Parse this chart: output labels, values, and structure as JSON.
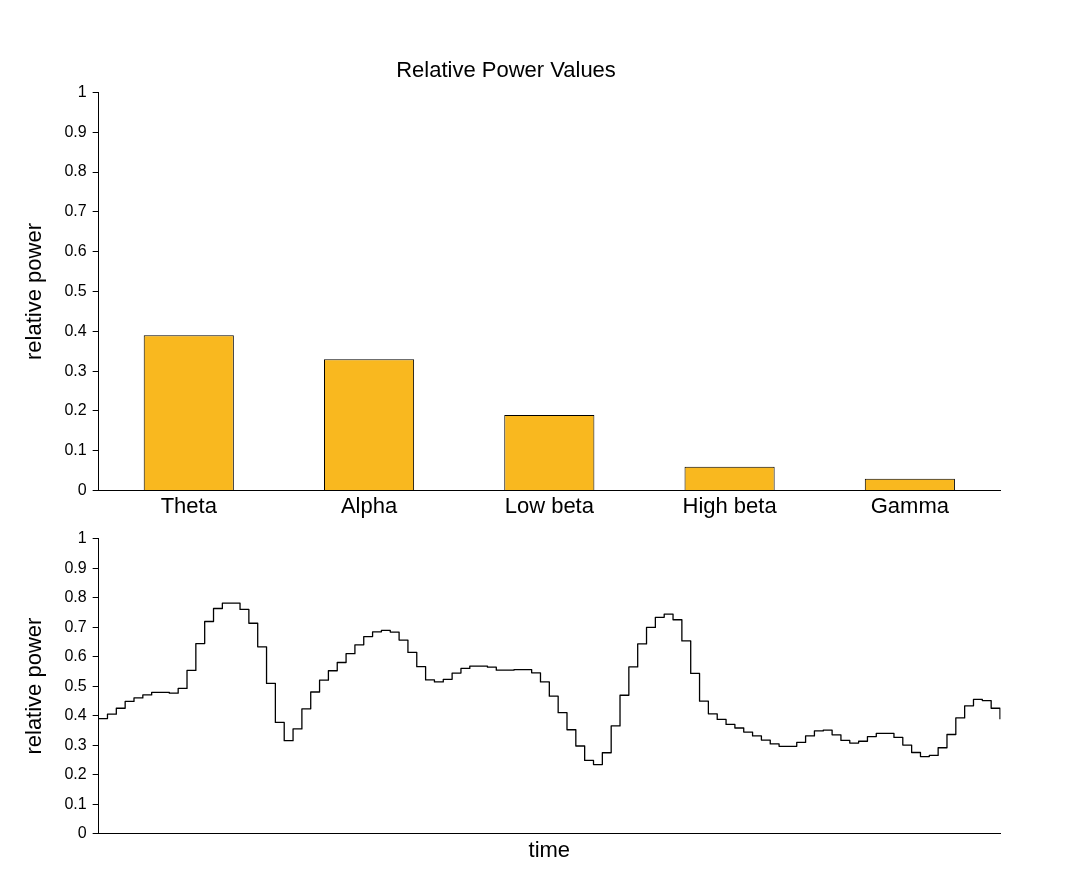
{
  "chart_data": [
    {
      "type": "bar",
      "title": "Relative Power Values",
      "ylabel": "relative power",
      "categories": [
        "Theta",
        "Alpha",
        "Low beta",
        "High beta",
        "Gamma"
      ],
      "values": [
        0.39,
        0.33,
        0.19,
        0.06,
        0.03
      ],
      "color": "#f9b81f",
      "ylim": [
        0,
        1
      ],
      "yticks": [
        0,
        0.1,
        0.2,
        0.3,
        0.4,
        0.5,
        0.6,
        0.7,
        0.8,
        0.9,
        1
      ],
      "grid": false,
      "legend": false
    },
    {
      "type": "step",
      "xlabel": "time",
      "ylabel": "relative power",
      "categories": [
        null,
        null,
        null,
        null,
        null,
        null,
        null,
        null,
        null,
        null,
        null,
        null,
        null,
        null,
        null,
        null,
        null,
        null,
        null,
        null,
        null,
        null,
        null,
        null,
        null,
        null,
        null,
        null,
        null,
        null,
        null,
        null,
        null,
        null,
        null,
        null,
        null,
        null,
        null,
        null,
        null,
        null,
        null,
        null,
        null,
        null,
        null,
        null,
        null,
        null,
        null,
        null,
        null,
        null,
        null,
        null,
        null,
        null,
        null,
        null,
        null,
        null,
        null,
        null,
        null,
        null,
        null,
        null,
        null,
        null,
        null,
        null,
        null,
        null,
        null,
        null,
        null,
        null,
        null,
        null,
        null,
        null,
        null,
        null,
        null,
        null,
        null,
        null,
        null,
        null,
        null,
        null,
        null,
        null,
        null,
        null,
        null,
        null,
        null,
        null,
        null,
        null,
        null
      ],
      "values": [
        0.39,
        0.405,
        0.425,
        0.448,
        0.46,
        0.47,
        0.479,
        0.479,
        0.476,
        0.492,
        0.553,
        0.644,
        0.719,
        0.763,
        0.781,
        0.781,
        0.76,
        0.713,
        0.633,
        0.509,
        0.377,
        0.315,
        0.355,
        0.423,
        0.48,
        0.52,
        0.552,
        0.58,
        0.61,
        0.64,
        0.668,
        0.684,
        0.689,
        0.683,
        0.656,
        0.614,
        0.566,
        0.521,
        0.514,
        0.523,
        0.544,
        0.56,
        0.568,
        0.568,
        0.564,
        0.554,
        0.554,
        0.556,
        0.556,
        0.545,
        0.514,
        0.466,
        0.41,
        0.352,
        0.297,
        0.248,
        0.234,
        0.274,
        0.365,
        0.469,
        0.565,
        0.643,
        0.699,
        0.733,
        0.744,
        0.725,
        0.653,
        0.543,
        0.449,
        0.406,
        0.387,
        0.37,
        0.358,
        0.344,
        0.331,
        0.317,
        0.304,
        0.296,
        0.296,
        0.309,
        0.331,
        0.348,
        0.351,
        0.335,
        0.316,
        0.307,
        0.313,
        0.329,
        0.34,
        0.34,
        0.326,
        0.3,
        0.275,
        0.261,
        0.265,
        0.291,
        0.336,
        0.392,
        0.433,
        0.455,
        0.451,
        0.425,
        0.388
      ],
      "color": "#000000",
      "marker": "none",
      "ylim": [
        0,
        1
      ],
      "yticks": [
        0,
        0.1,
        0.2,
        0.3,
        0.4,
        0.5,
        0.6,
        0.7,
        0.8,
        0.9,
        1
      ],
      "grid": false,
      "legend": false
    }
  ]
}
